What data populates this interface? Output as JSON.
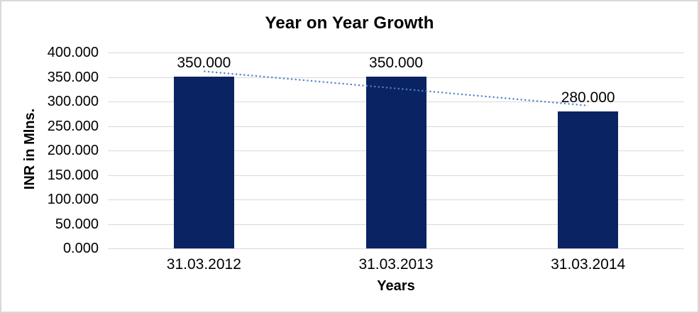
{
  "chart_data": {
    "type": "bar",
    "title": "Year on Year Growth",
    "categories": [
      "31.03.2012",
      "31.03.2013",
      "31.03.2014"
    ],
    "values": [
      350,
      350,
      280
    ],
    "data_labels": [
      "350.000",
      "350.000",
      "280.000"
    ],
    "xlabel": "Years",
    "ylabel": "INR in Mlns.",
    "ylim": [
      0,
      400
    ],
    "ytick_step": 50,
    "ytick_labels": [
      "400.000",
      "350.000",
      "300.000",
      "250.000",
      "200.000",
      "150.000",
      "100.000",
      "50.000",
      "0.000"
    ],
    "grid": true,
    "legend": "none",
    "colors": {
      "bar": "#0a2362",
      "trendline": "#4d86c6",
      "gridline": "#d9d9d9",
      "text": "#000000"
    },
    "trendline": {
      "type": "linear",
      "style": "dotted",
      "start_value": 361.667,
      "end_value": 291.667
    }
  }
}
